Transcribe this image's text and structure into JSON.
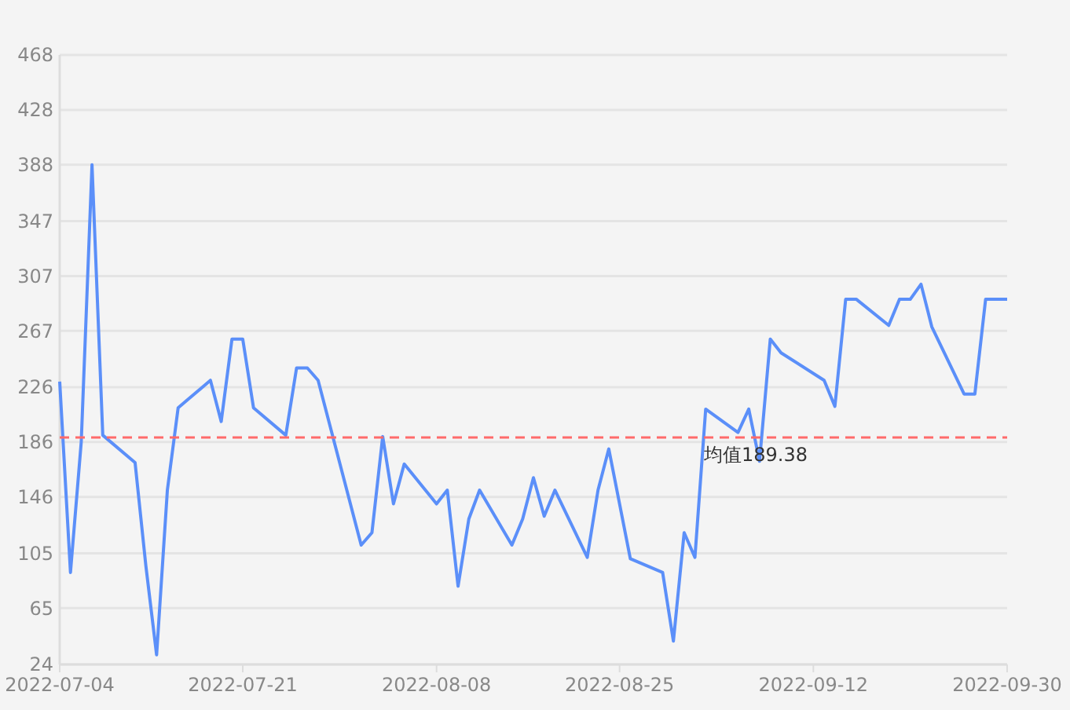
{
  "chart_data": {
    "type": "line",
    "x": [
      "2022-07-04",
      "2022-07-05",
      "2022-07-06",
      "2022-07-07",
      "2022-07-08",
      "2022-07-11",
      "2022-07-12",
      "2022-07-13",
      "2022-07-14",
      "2022-07-15",
      "2022-07-18",
      "2022-07-19",
      "2022-07-20",
      "2022-07-21",
      "2022-07-22",
      "2022-07-25",
      "2022-07-26",
      "2022-07-27",
      "2022-07-28",
      "2022-08-01",
      "2022-08-02",
      "2022-08-03",
      "2022-08-04",
      "2022-08-05",
      "2022-08-08",
      "2022-08-09",
      "2022-08-10",
      "2022-08-11",
      "2022-08-12",
      "2022-08-15",
      "2022-08-16",
      "2022-08-17",
      "2022-08-18",
      "2022-08-19",
      "2022-08-22",
      "2022-08-23",
      "2022-08-24",
      "2022-08-26",
      "2022-08-29",
      "2022-08-30",
      "2022-08-31",
      "2022-09-01",
      "2022-09-02",
      "2022-09-05",
      "2022-09-06",
      "2022-09-07",
      "2022-09-08",
      "2022-09-09",
      "2022-09-13",
      "2022-09-14",
      "2022-09-15",
      "2022-09-16",
      "2022-09-19",
      "2022-09-20",
      "2022-09-21",
      "2022-09-22",
      "2022-09-23",
      "2022-09-26",
      "2022-09-27",
      "2022-09-28",
      "2022-09-30"
    ],
    "series": [
      {
        "color": "#5b8ff9",
        "values": [
          230,
          91,
          186,
          388,
          191,
          171,
          96,
          31,
          151,
          211,
          231,
          201,
          261,
          261,
          211,
          191,
          240,
          240,
          231,
          111,
          120,
          190,
          141,
          170,
          141,
          151,
          81,
          130,
          151,
          111,
          130,
          160,
          132,
          151,
          102,
          151,
          181,
          101,
          91,
          41,
          120,
          102,
          210,
          193,
          210,
          172,
          261,
          251,
          231,
          212,
          290,
          290,
          271,
          290,
          290,
          301,
          270,
          221,
          221,
          290,
          290
        ]
      }
    ],
    "xlim": [
      "2022-07-04",
      "2022-09-30"
    ],
    "xticks": [
      {
        "value": "2022-07-04",
        "label": "2022-07-04"
      },
      {
        "value": "2022-07-21",
        "label": "2022-07-21"
      },
      {
        "value": "2022-08-08",
        "label": "2022-08-08"
      },
      {
        "value": "2022-08-25",
        "label": "2022-08-25"
      },
      {
        "value": "2022-09-12",
        "label": "2022-09-12"
      },
      {
        "value": "2022-09-30",
        "label": "2022-09-30"
      }
    ],
    "ylim": [
      24,
      468
    ],
    "yticks": [
      24,
      65,
      105,
      146,
      186,
      226,
      267,
      307,
      347,
      388,
      428,
      468
    ],
    "ref_lines": [
      {
        "axis": "y",
        "value": 189.38,
        "label": "均值189.38",
        "color": "#ff6b6b",
        "line_style": "dashed"
      }
    ],
    "grid": "y",
    "marker": "none",
    "line_style": "solid"
  }
}
